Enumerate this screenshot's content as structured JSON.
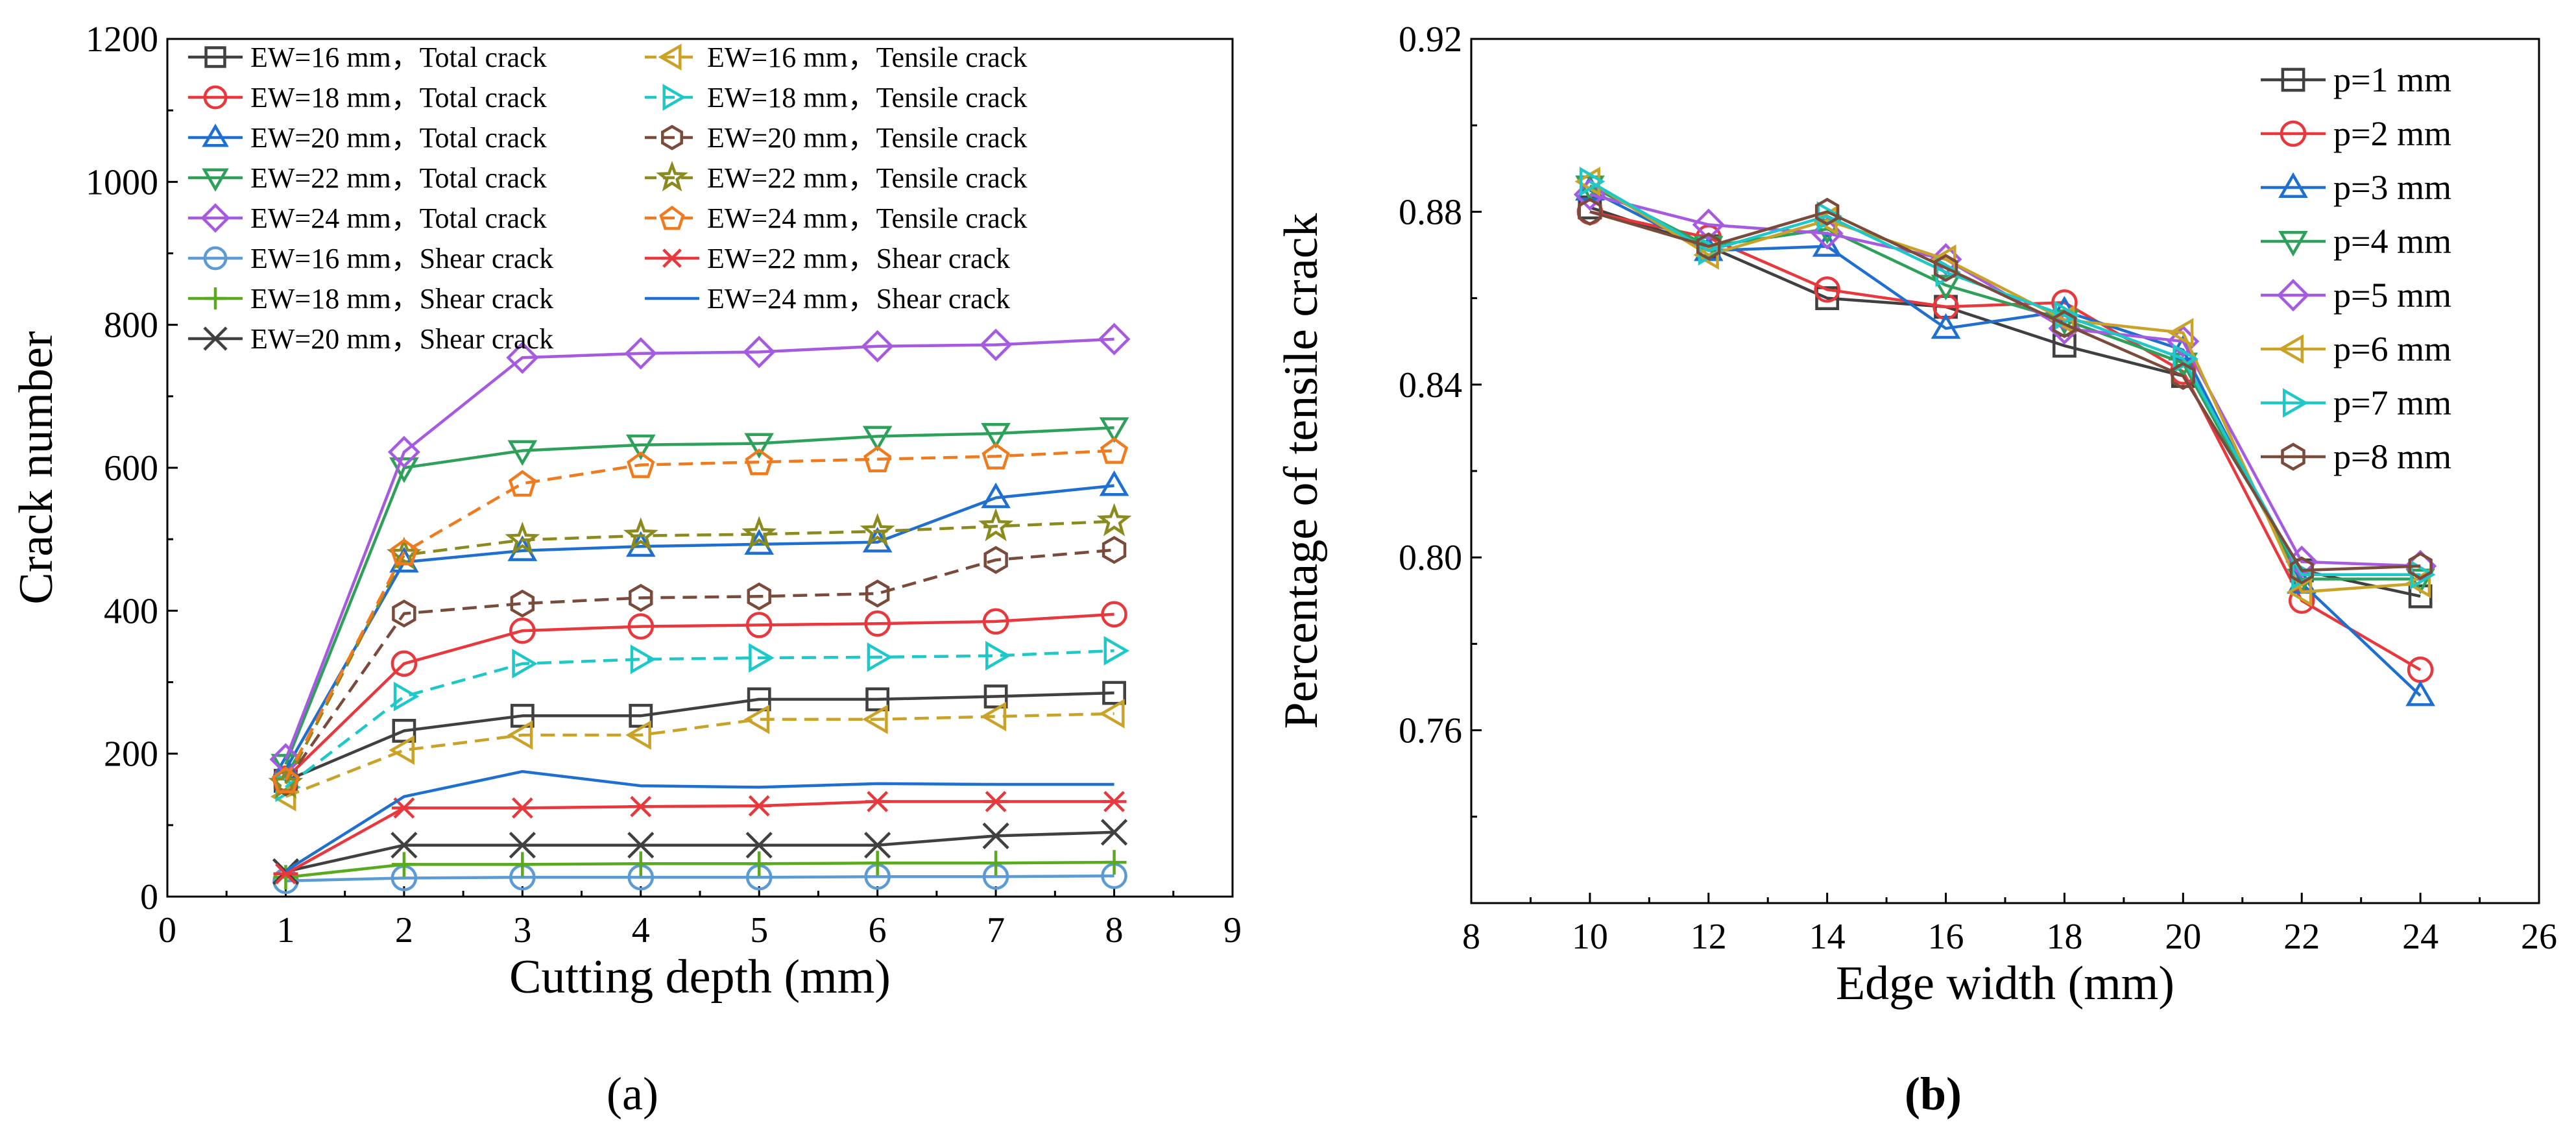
{
  "figure": {
    "panel_a_label": "(a)",
    "panel_b_label": "(b)"
  },
  "chart_data": [
    {
      "panel": "a",
      "type": "line",
      "title": "",
      "xlabel": "Cutting depth (mm)",
      "ylabel": "Crack number",
      "xlim": [
        0,
        9
      ],
      "ylim": [
        0,
        1200
      ],
      "x_ticks": [
        0,
        1,
        2,
        3,
        4,
        5,
        6,
        7,
        8,
        9
      ],
      "y_ticks": [
        0,
        200,
        400,
        600,
        800,
        1000,
        1200
      ],
      "legend_position": "top-left",
      "x": [
        1,
        2,
        3,
        4,
        5,
        6,
        7,
        8
      ],
      "series": [
        {
          "name": "EW=16 mm，Total crack",
          "color": "#404040",
          "marker": "square",
          "dash": false,
          "values": [
            162,
            232,
            253,
            253,
            276,
            276,
            280,
            285
          ]
        },
        {
          "name": "EW=18 mm，Total crack",
          "color": "#e8383d",
          "marker": "circle",
          "dash": false,
          "values": [
            165,
            326,
            372,
            378,
            380,
            382,
            385,
            395
          ]
        },
        {
          "name": "EW=20 mm，Total crack",
          "color": "#1f6fd1",
          "marker": "triangle-up",
          "dash": false,
          "values": [
            178,
            468,
            484,
            490,
            493,
            496,
            558,
            575
          ]
        },
        {
          "name": "EW=22 mm，Total crack",
          "color": "#2da05a",
          "marker": "triangle-down",
          "dash": false,
          "values": [
            185,
            600,
            624,
            632,
            634,
            644,
            648,
            656
          ]
        },
        {
          "name": "EW=24 mm，Total crack",
          "color": "#a55ae0",
          "marker": "diamond",
          "dash": false,
          "values": [
            192,
            622,
            754,
            760,
            762,
            770,
            772,
            780
          ]
        },
        {
          "name": "EW=16 mm，Shear crack",
          "color": "#5b9bd5",
          "marker": "circle",
          "dash": false,
          "values": [
            22,
            26,
            27,
            27,
            27,
            28,
            28,
            29
          ]
        },
        {
          "name": "EW=18 mm，Shear crack",
          "color": "#5aaa1e",
          "marker": "plus",
          "dash": false,
          "values": [
            27,
            45,
            45,
            46,
            46,
            47,
            47,
            48
          ]
        },
        {
          "name": "EW=20 mm，Shear crack",
          "color": "#404040",
          "marker": "x",
          "dash": false,
          "values": [
            35,
            72,
            72,
            72,
            72,
            72,
            85,
            90
          ]
        },
        {
          "name": "EW=16 mm，Tensile crack",
          "color": "#c9a227",
          "marker": "triangle-left",
          "dash": true,
          "values": [
            140,
            205,
            226,
            226,
            248,
            248,
            252,
            256
          ]
        },
        {
          "name": "EW=18 mm，Tensile crack",
          "color": "#1ec8c8",
          "marker": "triangle-right",
          "dash": true,
          "values": [
            153,
            280,
            326,
            332,
            334,
            335,
            337,
            344
          ]
        },
        {
          "name": "EW=20 mm，Tensile crack",
          "color": "#7a4a3a",
          "marker": "hexagon",
          "dash": true,
          "values": [
            160,
            396,
            410,
            418,
            420,
            424,
            471,
            485
          ]
        },
        {
          "name": "EW=22 mm，Tensile crack",
          "color": "#8a8a1e",
          "marker": "star",
          "dash": true,
          "values": [
            158,
            478,
            499,
            505,
            507,
            511,
            518,
            525
          ]
        },
        {
          "name": "EW=24 mm，Tensile crack",
          "color": "#f07a1e",
          "marker": "pentagon",
          "dash": true,
          "values": [
            163,
            482,
            578,
            604,
            608,
            612,
            616,
            624
          ]
        },
        {
          "name": "EW=22 mm，Shear crack",
          "color": "#e8383d",
          "marker": "asterisk",
          "dash": false,
          "values": [
            32,
            124,
            124,
            126,
            127,
            133,
            133,
            133
          ]
        },
        {
          "name": "EW=24 mm，Shear crack",
          "color": "#1f6fd1",
          "marker": "none",
          "dash": false,
          "values": [
            36,
            140,
            175,
            155,
            153,
            158,
            157,
            157
          ]
        }
      ]
    },
    {
      "panel": "b",
      "type": "line",
      "title": "",
      "xlabel": "Edge width (mm)",
      "ylabel": "Percentage of tensile crack",
      "xlim": [
        8,
        26
      ],
      "ylim": [
        0.72,
        0.92
      ],
      "x_ticks": [
        8,
        10,
        12,
        14,
        16,
        18,
        20,
        22,
        24,
        26
      ],
      "y_ticks": [
        0.76,
        0.8,
        0.84,
        0.88,
        0.92
      ],
      "legend_position": "top-right",
      "x": [
        10,
        12,
        14,
        16,
        18,
        20,
        22,
        24
      ],
      "series": [
        {
          "name": "p=1 mm",
          "color": "#404040",
          "marker": "square",
          "values": [
            0.881,
            0.872,
            0.86,
            0.858,
            0.849,
            0.842,
            0.797,
            0.791
          ]
        },
        {
          "name": "p=2 mm",
          "color": "#e8383d",
          "marker": "circle",
          "values": [
            0.88,
            0.874,
            0.862,
            0.858,
            0.859,
            0.843,
            0.79,
            0.774
          ]
        },
        {
          "name": "p=3 mm",
          "color": "#1f6fd1",
          "marker": "triangle-up",
          "values": [
            0.885,
            0.871,
            0.872,
            0.853,
            0.857,
            0.848,
            0.794,
            0.768
          ]
        },
        {
          "name": "p=4 mm",
          "color": "#2da05a",
          "marker": "triangle-down",
          "values": [
            0.886,
            0.872,
            0.876,
            0.863,
            0.855,
            0.845,
            0.795,
            0.795
          ]
        },
        {
          "name": "p=5 mm",
          "color": "#a55ae0",
          "marker": "diamond",
          "values": [
            0.884,
            0.877,
            0.875,
            0.869,
            0.853,
            0.85,
            0.799,
            0.798
          ]
        },
        {
          "name": "p=6 mm",
          "color": "#c9a227",
          "marker": "triangle-left",
          "values": [
            0.887,
            0.87,
            0.878,
            0.869,
            0.855,
            0.852,
            0.792,
            0.794
          ]
        },
        {
          "name": "p=7 mm",
          "color": "#1ec8c8",
          "marker": "triangle-right",
          "values": [
            0.887,
            0.871,
            0.879,
            0.866,
            0.856,
            0.846,
            0.796,
            0.796
          ]
        },
        {
          "name": "p=8 mm",
          "color": "#7a4a3a",
          "marker": "hexagon",
          "values": [
            0.88,
            0.872,
            0.88,
            0.867,
            0.854,
            0.842,
            0.797,
            0.798
          ]
        }
      ]
    }
  ]
}
